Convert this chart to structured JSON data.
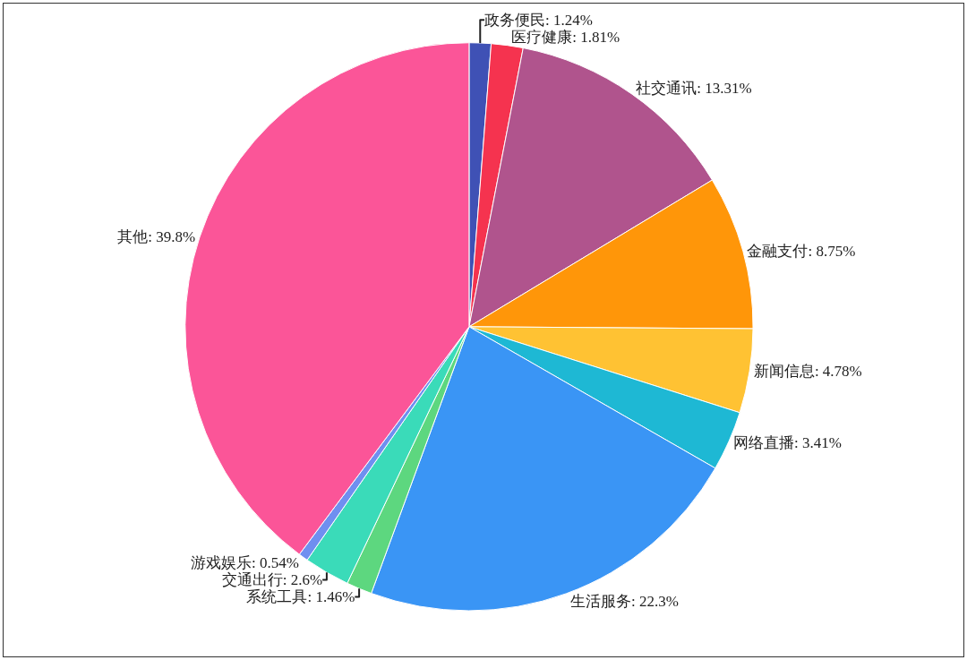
{
  "chart_data": {
    "type": "pie",
    "categories": [
      "政务便民",
      "医疗健康",
      "社交通讯",
      "金融支付",
      "新闻信息",
      "网络直播",
      "生活服务",
      "系统工具",
      "交通出行",
      "游戏娱乐",
      "其他"
    ],
    "values": [
      1.24,
      1.81,
      13.31,
      8.75,
      4.78,
      3.41,
      22.3,
      1.46,
      2.6,
      0.54,
      39.8
    ],
    "value_labels": [
      "1.24%",
      "1.81%",
      "13.31%",
      "8.75%",
      "4.78%",
      "3.41%",
      "22.3%",
      "1.46%",
      "2.6%",
      "0.54%",
      "39.8%"
    ],
    "colors": [
      "#3f51b5",
      "#f5334f",
      "#b0548d",
      "#ff9609",
      "#ffc233",
      "#1eb8d4",
      "#3a95f5",
      "#5dd77f",
      "#3adbb9",
      "#6f8ff0",
      "#fb5598"
    ],
    "legend": false
  }
}
